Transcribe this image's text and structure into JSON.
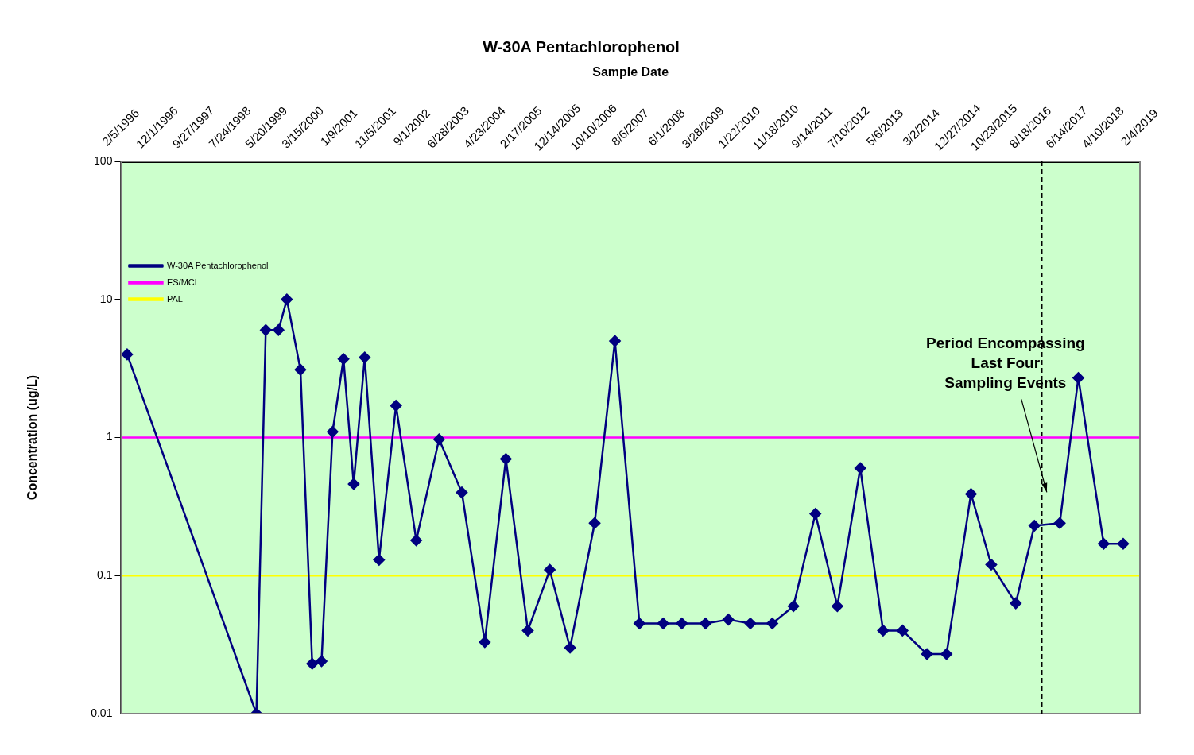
{
  "chart_data": {
    "type": "line",
    "title": "W-30A Pentachlorophenol",
    "xlabel": "Sample Date",
    "ylabel": "Concentration (ug/L)",
    "series": [
      {
        "name": "W-30A Pentachlorophenol",
        "color": "#000080",
        "x": [
          "1996-03-25",
          "1999-02-24",
          "1999-05-12",
          "1999-08-25",
          "1999-11-02",
          "2000-02-22",
          "2000-05-29",
          "2000-08-14",
          "2000-11-13",
          "2001-02-11",
          "2001-05-06",
          "2001-08-05",
          "2001-12-01",
          "2002-04-20",
          "2002-10-04",
          "2003-04-10",
          "2003-10-15",
          "2004-04-21",
          "2004-10-12",
          "2005-04-11",
          "2005-10-09",
          "2006-03-25",
          "2006-10-14",
          "2007-03-30",
          "2007-10-18",
          "2008-05-01",
          "2008-10-02",
          "2009-04-15",
          "2009-10-20",
          "2010-04-20",
          "2010-10-18",
          "2011-04-10",
          "2011-10-08",
          "2012-04-06",
          "2012-10-12",
          "2013-04-18",
          "2013-09-25",
          "2014-04-15",
          "2014-09-23",
          "2015-04-13",
          "2015-09-27",
          "2016-04-16",
          "2016-09-17",
          "2017-04-14",
          "2017-09-14",
          "2018-04-11",
          "2018-09-19"
        ],
        "values": [
          4,
          0.01,
          6,
          6,
          10,
          3.1,
          0.023,
          0.024,
          1.1,
          3.7,
          0.46,
          3.8,
          0.13,
          1.7,
          0.18,
          0.97,
          0.4,
          0.033,
          0.7,
          0.04,
          0.11,
          0.03,
          0.24,
          5,
          0.045,
          0.045,
          0.045,
          0.045,
          0.048,
          0.045,
          0.045,
          0.06,
          0.28,
          0.06,
          0.6,
          0.04,
          0.04,
          0.027,
          0.027,
          0.39,
          0.12,
          0.063,
          0.23,
          0.24,
          2.7,
          0.17,
          0.17
        ]
      }
    ],
    "ref_lines": [
      {
        "axis": "y",
        "value": 1,
        "label": "ES/MCL",
        "color": "#ff00ff"
      },
      {
        "axis": "y",
        "value": 0.1,
        "label": "PAL",
        "color": "#ffff00"
      },
      {
        "axis": "x",
        "value": "2016-11-18",
        "color": "#000000",
        "line_style": "dashed"
      }
    ],
    "annotations": [
      "Period Encompassing\nLast Four\nSampling Events"
    ],
    "log": "y",
    "ylim": [
      0.01,
      100
    ],
    "yticks": [
      0.01,
      0.1,
      1,
      10,
      100
    ],
    "xlim": [
      "1996-02-05",
      "2019-02-04"
    ],
    "xticks": [
      {
        "value": "1996-02-05",
        "label": "2/5/1996"
      },
      {
        "value": "1996-12-01",
        "label": "12/1/1996"
      },
      {
        "value": "1997-09-27",
        "label": "9/27/1997"
      },
      {
        "value": "1998-07-24",
        "label": "7/24/1998"
      },
      {
        "value": "1999-05-20",
        "label": "5/20/1999"
      },
      {
        "value": "2000-03-15",
        "label": "3/15/2000"
      },
      {
        "value": "2001-01-09",
        "label": "1/9/2001"
      },
      {
        "value": "2001-11-05",
        "label": "11/5/2001"
      },
      {
        "value": "2002-09-01",
        "label": "9/1/2002"
      },
      {
        "value": "2003-06-28",
        "label": "6/28/2003"
      },
      {
        "value": "2004-04-23",
        "label": "4/23/2004"
      },
      {
        "value": "2005-02-17",
        "label": "2/17/2005"
      },
      {
        "value": "2005-12-14",
        "label": "12/14/2005"
      },
      {
        "value": "2006-10-10",
        "label": "10/10/2006"
      },
      {
        "value": "2007-08-06",
        "label": "8/6/2007"
      },
      {
        "value": "2008-06-01",
        "label": "6/1/2008"
      },
      {
        "value": "2009-03-28",
        "label": "3/28/2009"
      },
      {
        "value": "2010-01-22",
        "label": "1/22/2010"
      },
      {
        "value": "2010-11-18",
        "label": "11/18/2010"
      },
      {
        "value": "2011-09-14",
        "label": "9/14/2011"
      },
      {
        "value": "2012-07-10",
        "label": "7/10/2012"
      },
      {
        "value": "2013-05-06",
        "label": "5/6/2013"
      },
      {
        "value": "2014-03-02",
        "label": "3/2/2014"
      },
      {
        "value": "2014-12-27",
        "label": "12/27/2014"
      },
      {
        "value": "2015-10-23",
        "label": "10/23/2015"
      },
      {
        "value": "2016-08-18",
        "label": "8/18/2016"
      },
      {
        "value": "2017-06-14",
        "label": "6/14/2017"
      },
      {
        "value": "2018-04-10",
        "label": "4/10/2018"
      },
      {
        "value": "2019-02-04",
        "label": "2/4/2019"
      }
    ],
    "grid": false,
    "legend": "top",
    "marker": "diamond",
    "line_style": "solid"
  }
}
